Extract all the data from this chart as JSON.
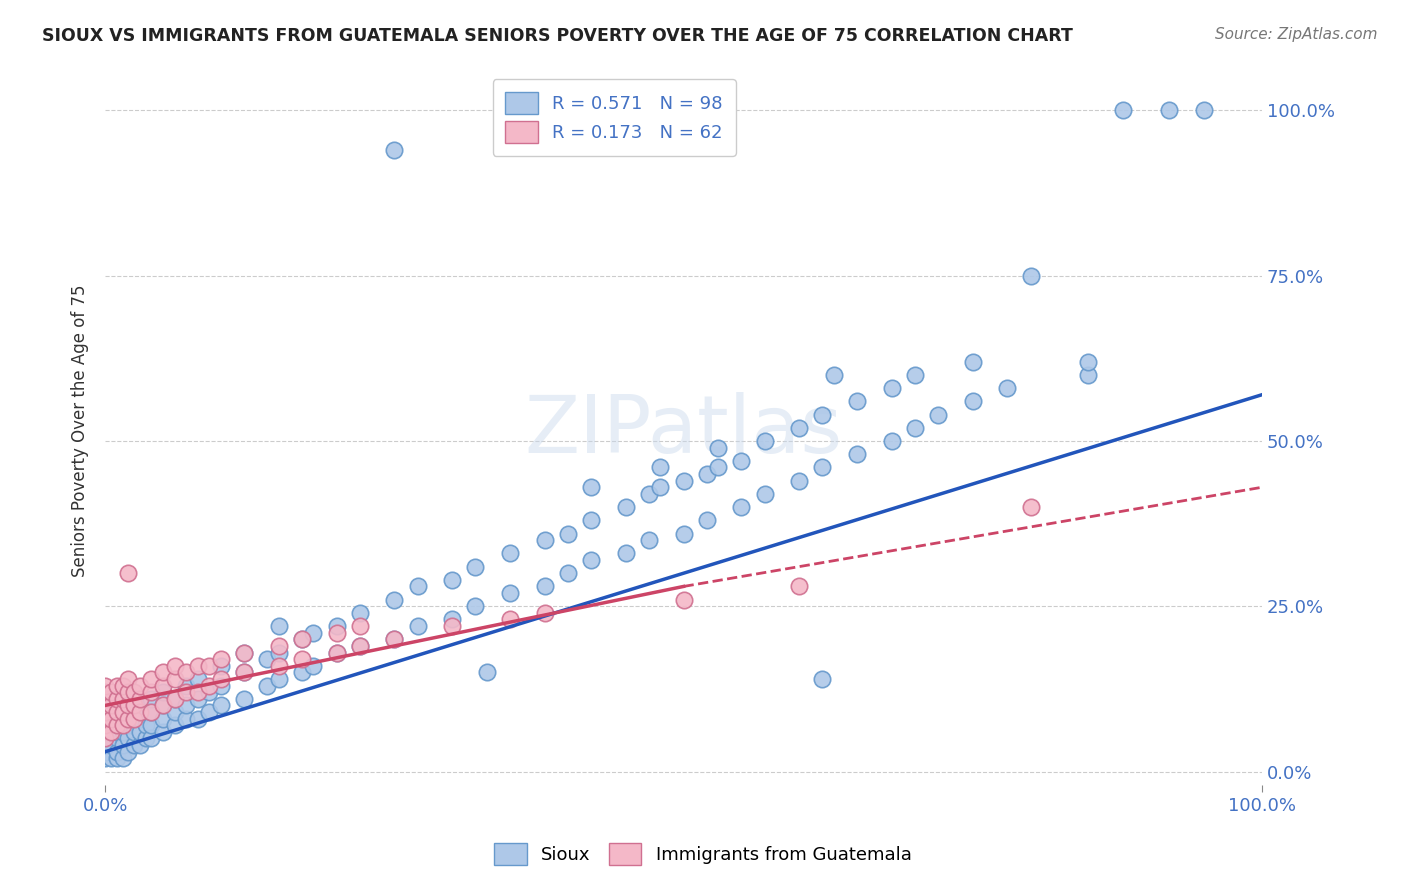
{
  "title": "SIOUX VS IMMIGRANTS FROM GUATEMALA SENIORS POVERTY OVER THE AGE OF 75 CORRELATION CHART",
  "source": "Source: ZipAtlas.com",
  "ylabel": "Seniors Poverty Over the Age of 75",
  "xlim": [
    0.0,
    1.0
  ],
  "ylim": [
    -0.02,
    1.05
  ],
  "yticks": [
    0.0,
    0.25,
    0.5,
    0.75,
    1.0
  ],
  "ytick_labels_right": [
    "0.0%",
    "25.0%",
    "50.0%",
    "75.0%",
    "100.0%"
  ],
  "xtick_labels": [
    "0.0%",
    "100.0%"
  ],
  "background_color": "#ffffff",
  "sioux_color": "#aec8e8",
  "sioux_edge": "#6699cc",
  "guatemala_color": "#f4b8c8",
  "guatemala_edge": "#d07090",
  "line_sioux_color": "#2255bb",
  "line_guatemala_color": "#cc4466",
  "sioux_line": [
    [
      0.0,
      0.03
    ],
    [
      1.0,
      0.57
    ]
  ],
  "guatemala_line": [
    [
      0.0,
      0.1
    ],
    [
      0.5,
      0.28
    ]
  ],
  "sioux_points": [
    [
      0.0,
      0.02
    ],
    [
      0.0,
      0.03
    ],
    [
      0.0,
      0.04
    ],
    [
      0.005,
      0.02
    ],
    [
      0.005,
      0.04
    ],
    [
      0.01,
      0.02
    ],
    [
      0.01,
      0.03
    ],
    [
      0.01,
      0.05
    ],
    [
      0.01,
      0.06
    ],
    [
      0.015,
      0.02
    ],
    [
      0.015,
      0.04
    ],
    [
      0.015,
      0.06
    ],
    [
      0.015,
      0.07
    ],
    [
      0.02,
      0.03
    ],
    [
      0.02,
      0.05
    ],
    [
      0.02,
      0.07
    ],
    [
      0.02,
      0.08
    ],
    [
      0.025,
      0.04
    ],
    [
      0.025,
      0.06
    ],
    [
      0.025,
      0.08
    ],
    [
      0.03,
      0.04
    ],
    [
      0.03,
      0.06
    ],
    [
      0.03,
      0.08
    ],
    [
      0.03,
      0.1
    ],
    [
      0.035,
      0.05
    ],
    [
      0.035,
      0.07
    ],
    [
      0.035,
      0.09
    ],
    [
      0.04,
      0.05
    ],
    [
      0.04,
      0.07
    ],
    [
      0.04,
      0.09
    ],
    [
      0.04,
      0.11
    ],
    [
      0.05,
      0.06
    ],
    [
      0.05,
      0.08
    ],
    [
      0.05,
      0.1
    ],
    [
      0.05,
      0.12
    ],
    [
      0.06,
      0.07
    ],
    [
      0.06,
      0.09
    ],
    [
      0.06,
      0.11
    ],
    [
      0.07,
      0.08
    ],
    [
      0.07,
      0.1
    ],
    [
      0.07,
      0.13
    ],
    [
      0.08,
      0.08
    ],
    [
      0.08,
      0.11
    ],
    [
      0.08,
      0.14
    ],
    [
      0.09,
      0.09
    ],
    [
      0.09,
      0.12
    ],
    [
      0.1,
      0.1
    ],
    [
      0.1,
      0.13
    ],
    [
      0.1,
      0.16
    ],
    [
      0.12,
      0.11
    ],
    [
      0.12,
      0.15
    ],
    [
      0.12,
      0.18
    ],
    [
      0.14,
      0.13
    ],
    [
      0.14,
      0.17
    ],
    [
      0.15,
      0.14
    ],
    [
      0.15,
      0.18
    ],
    [
      0.15,
      0.22
    ],
    [
      0.17,
      0.15
    ],
    [
      0.17,
      0.2
    ],
    [
      0.18,
      0.16
    ],
    [
      0.18,
      0.21
    ],
    [
      0.2,
      0.18
    ],
    [
      0.2,
      0.22
    ],
    [
      0.22,
      0.19
    ],
    [
      0.22,
      0.24
    ],
    [
      0.25,
      0.2
    ],
    [
      0.25,
      0.26
    ],
    [
      0.27,
      0.22
    ],
    [
      0.27,
      0.28
    ],
    [
      0.3,
      0.23
    ],
    [
      0.3,
      0.29
    ],
    [
      0.32,
      0.25
    ],
    [
      0.32,
      0.31
    ],
    [
      0.35,
      0.27
    ],
    [
      0.35,
      0.33
    ],
    [
      0.38,
      0.28
    ],
    [
      0.38,
      0.35
    ],
    [
      0.4,
      0.3
    ],
    [
      0.4,
      0.36
    ],
    [
      0.42,
      0.32
    ],
    [
      0.42,
      0.38
    ],
    [
      0.42,
      0.43
    ],
    [
      0.45,
      0.33
    ],
    [
      0.45,
      0.4
    ],
    [
      0.47,
      0.35
    ],
    [
      0.47,
      0.42
    ],
    [
      0.48,
      0.43
    ],
    [
      0.48,
      0.46
    ],
    [
      0.5,
      0.36
    ],
    [
      0.5,
      0.44
    ],
    [
      0.52,
      0.38
    ],
    [
      0.52,
      0.45
    ],
    [
      0.53,
      0.46
    ],
    [
      0.53,
      0.49
    ],
    [
      0.55,
      0.4
    ],
    [
      0.55,
      0.47
    ],
    [
      0.57,
      0.42
    ],
    [
      0.57,
      0.5
    ],
    [
      0.6,
      0.44
    ],
    [
      0.6,
      0.52
    ],
    [
      0.62,
      0.46
    ],
    [
      0.62,
      0.54
    ],
    [
      0.63,
      0.6
    ],
    [
      0.65,
      0.48
    ],
    [
      0.65,
      0.56
    ],
    [
      0.68,
      0.5
    ],
    [
      0.68,
      0.58
    ],
    [
      0.7,
      0.52
    ],
    [
      0.7,
      0.6
    ],
    [
      0.72,
      0.54
    ],
    [
      0.75,
      0.56
    ],
    [
      0.75,
      0.62
    ],
    [
      0.78,
      0.58
    ],
    [
      0.8,
      0.75
    ],
    [
      0.85,
      0.6
    ],
    [
      0.85,
      0.62
    ],
    [
      0.88,
      1.0
    ],
    [
      0.92,
      1.0
    ],
    [
      0.95,
      1.0
    ],
    [
      0.25,
      0.94
    ],
    [
      0.33,
      0.15
    ],
    [
      0.62,
      0.14
    ]
  ],
  "guatemala_points": [
    [
      0.0,
      0.05
    ],
    [
      0.0,
      0.07
    ],
    [
      0.0,
      0.08
    ],
    [
      0.0,
      0.09
    ],
    [
      0.0,
      0.1
    ],
    [
      0.0,
      0.11
    ],
    [
      0.0,
      0.12
    ],
    [
      0.0,
      0.13
    ],
    [
      0.005,
      0.06
    ],
    [
      0.005,
      0.08
    ],
    [
      0.005,
      0.1
    ],
    [
      0.005,
      0.12
    ],
    [
      0.01,
      0.07
    ],
    [
      0.01,
      0.09
    ],
    [
      0.01,
      0.11
    ],
    [
      0.01,
      0.13
    ],
    [
      0.015,
      0.07
    ],
    [
      0.015,
      0.09
    ],
    [
      0.015,
      0.11
    ],
    [
      0.015,
      0.13
    ],
    [
      0.02,
      0.08
    ],
    [
      0.02,
      0.1
    ],
    [
      0.02,
      0.12
    ],
    [
      0.02,
      0.14
    ],
    [
      0.025,
      0.08
    ],
    [
      0.025,
      0.1
    ],
    [
      0.025,
      0.12
    ],
    [
      0.03,
      0.09
    ],
    [
      0.03,
      0.11
    ],
    [
      0.03,
      0.13
    ],
    [
      0.04,
      0.09
    ],
    [
      0.04,
      0.12
    ],
    [
      0.04,
      0.14
    ],
    [
      0.05,
      0.1
    ],
    [
      0.05,
      0.13
    ],
    [
      0.05,
      0.15
    ],
    [
      0.06,
      0.11
    ],
    [
      0.06,
      0.14
    ],
    [
      0.06,
      0.16
    ],
    [
      0.07,
      0.12
    ],
    [
      0.07,
      0.15
    ],
    [
      0.08,
      0.12
    ],
    [
      0.08,
      0.16
    ],
    [
      0.09,
      0.13
    ],
    [
      0.09,
      0.16
    ],
    [
      0.1,
      0.14
    ],
    [
      0.1,
      0.17
    ],
    [
      0.12,
      0.15
    ],
    [
      0.12,
      0.18
    ],
    [
      0.15,
      0.16
    ],
    [
      0.15,
      0.19
    ],
    [
      0.17,
      0.17
    ],
    [
      0.17,
      0.2
    ],
    [
      0.2,
      0.18
    ],
    [
      0.2,
      0.21
    ],
    [
      0.22,
      0.19
    ],
    [
      0.22,
      0.22
    ],
    [
      0.25,
      0.2
    ],
    [
      0.3,
      0.22
    ],
    [
      0.35,
      0.23
    ],
    [
      0.38,
      0.24
    ],
    [
      0.02,
      0.3
    ],
    [
      0.5,
      0.26
    ],
    [
      0.6,
      0.28
    ],
    [
      0.8,
      0.4
    ]
  ]
}
